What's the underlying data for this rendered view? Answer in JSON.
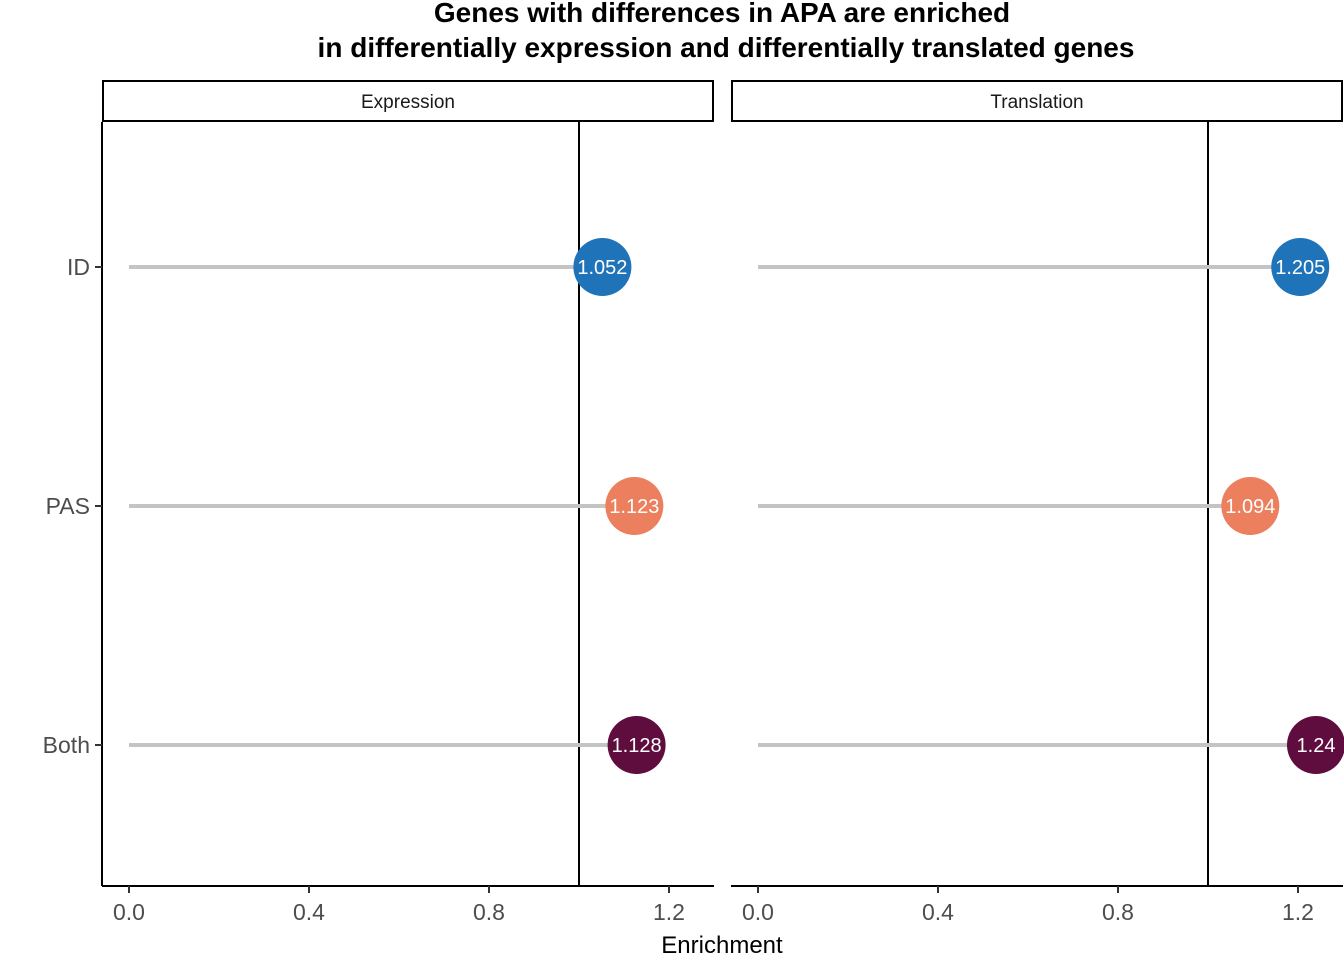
{
  "chart_data": {
    "type": "lollipop",
    "title_lines": [
      "Genes with differences in APA are enriched",
      "in differentially expression and differentially translated genes"
    ],
    "xlabel": "Enrichment",
    "ylabel": "",
    "xlim": [
      -0.06,
      1.3
    ],
    "x_ticks": [
      0.0,
      0.4,
      0.8,
      1.2
    ],
    "x_tick_labels": [
      "0.0",
      "0.4",
      "0.8",
      "1.2"
    ],
    "reference_line": 1.0,
    "categories": [
      "ID",
      "PAS",
      "Both"
    ],
    "category_colors": {
      "ID": "#1f74b9",
      "PAS": "#ec7f5d",
      "Both": "#5f0c3f"
    },
    "segment_color": "#c4c4c4",
    "grid": false,
    "legend": "none",
    "facets": [
      {
        "name": "Expression",
        "points": [
          {
            "category": "ID",
            "value": 1.052,
            "label": "1.052"
          },
          {
            "category": "PAS",
            "value": 1.123,
            "label": "1.123"
          },
          {
            "category": "Both",
            "value": 1.128,
            "label": "1.128"
          }
        ]
      },
      {
        "name": "Translation",
        "points": [
          {
            "category": "ID",
            "value": 1.205,
            "label": "1.205"
          },
          {
            "category": "PAS",
            "value": 1.094,
            "label": "1.094"
          },
          {
            "category": "Both",
            "value": 1.24,
            "label": "1.24"
          }
        ]
      }
    ]
  }
}
